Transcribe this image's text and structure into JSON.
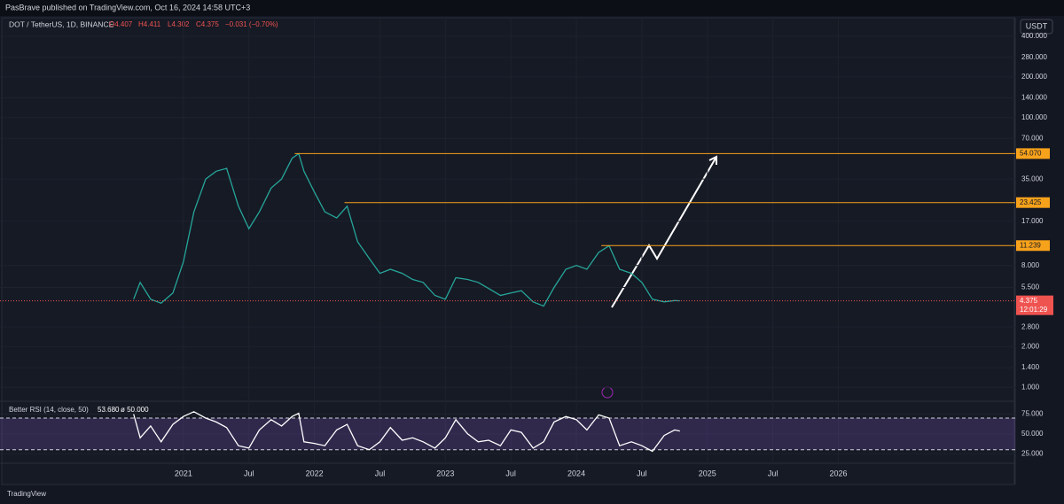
{
  "header": {
    "publisher": "PasBrave published on TradingView.com, Oct 16, 2024 14:58 UTC+3",
    "footer": "TradingView"
  },
  "chart_data": [
    {
      "type": "line",
      "title": "DOT / TetherUS, 1D, BINANCE",
      "ohlc": {
        "open": "O4.407",
        "high": "H4.411",
        "low": "L4.302",
        "close": "C4.375",
        "change": "−0.031 (−0.70%)"
      },
      "currency": "USDT",
      "log_scale": true,
      "color": "#26a69a",
      "x": [
        2020.62,
        2020.67,
        2020.75,
        2020.83,
        2020.92,
        2021.0,
        2021.08,
        2021.17,
        2021.25,
        2021.33,
        2021.42,
        2021.5,
        2021.58,
        2021.67,
        2021.75,
        2021.83,
        2021.88,
        2021.92,
        2022.0,
        2022.08,
        2022.17,
        2022.25,
        2022.33,
        2022.42,
        2022.5,
        2022.58,
        2022.67,
        2022.75,
        2022.83,
        2022.92,
        2023.0,
        2023.08,
        2023.17,
        2023.25,
        2023.33,
        2023.42,
        2023.5,
        2023.58,
        2023.67,
        2023.75,
        2023.83,
        2023.92,
        2024.0,
        2024.08,
        2024.17,
        2024.25,
        2024.33,
        2024.42,
        2024.5,
        2024.58,
        2024.67,
        2024.75,
        2024.79
      ],
      "series": [
        {
          "name": "DOT",
          "color": "#26a69a",
          "values": [
            4.5,
            6.0,
            4.5,
            4.2,
            5.0,
            8.5,
            20,
            35,
            40,
            42,
            22,
            15,
            20,
            30,
            35,
            50,
            54,
            40,
            28,
            20,
            18,
            22,
            12,
            9,
            7,
            7.5,
            7,
            6.3,
            6,
            4.8,
            4.5,
            6.5,
            6.3,
            6,
            5.4,
            4.8,
            5.0,
            5.2,
            4.3,
            4.0,
            5.5,
            7.5,
            8,
            7.5,
            10,
            11.2,
            7.5,
            7,
            6,
            4.5,
            4.3,
            4.4,
            4.375
          ]
        }
      ],
      "xlim": [
        2019.6,
        2027.35
      ],
      "xticks": [
        {
          "value": 2021,
          "label": "2021"
        },
        {
          "value": 2021.5,
          "label": "Jul"
        },
        {
          "value": 2022,
          "label": "2022"
        },
        {
          "value": 2022.5,
          "label": "Jul"
        },
        {
          "value": 2023,
          "label": "2023"
        },
        {
          "value": 2023.5,
          "label": "Jul"
        },
        {
          "value": 2024,
          "label": "2024"
        },
        {
          "value": 2024.5,
          "label": "Jul"
        },
        {
          "value": 2025,
          "label": "2025"
        },
        {
          "value": 2025.5,
          "label": "Jul"
        },
        {
          "value": 2026,
          "label": "2026"
        }
      ],
      "ylim": [
        0.8,
        550
      ],
      "yticks": [
        {
          "value": 1,
          "label": "1.000"
        },
        {
          "value": 1.4,
          "label": "1.400"
        },
        {
          "value": 2,
          "label": "2.000"
        },
        {
          "value": 2.8,
          "label": "2.800"
        },
        {
          "value": 5.5,
          "label": "5.500"
        },
        {
          "value": 8,
          "label": "8.000"
        },
        {
          "value": 17,
          "label": "17.000"
        },
        {
          "value": 35,
          "label": "35.000"
        },
        {
          "value": 70,
          "label": "70.000"
        },
        {
          "value": 100,
          "label": "100.000"
        },
        {
          "value": 140,
          "label": "140.000"
        },
        {
          "value": 200,
          "label": "200.000"
        },
        {
          "value": 280,
          "label": "280.000"
        },
        {
          "value": 400,
          "label": "400.000"
        }
      ],
      "levels": [
        {
          "value": 54.07,
          "label": "54.070",
          "from": 2021.85
        },
        {
          "value": 23.425,
          "label": "23.425",
          "from": 2022.23
        },
        {
          "value": 11.239,
          "label": "11.239",
          "from": 2024.19
        }
      ],
      "last_price": {
        "value": 4.375,
        "label": "4.375",
        "countdown": "12:01:29"
      }
    },
    {
      "type": "line",
      "title": "Better RSI (14, close, 50)",
      "current": "53.680",
      "average": "ø 50.000",
      "color": "#ffffff",
      "x": [
        2020.62,
        2020.67,
        2020.75,
        2020.83,
        2020.92,
        2021.0,
        2021.08,
        2021.17,
        2021.25,
        2021.33,
        2021.42,
        2021.5,
        2021.58,
        2021.67,
        2021.75,
        2021.83,
        2021.88,
        2021.92,
        2022.0,
        2022.08,
        2022.17,
        2022.25,
        2022.33,
        2022.42,
        2022.5,
        2022.58,
        2022.67,
        2022.75,
        2022.83,
        2022.92,
        2023.0,
        2023.08,
        2023.17,
        2023.25,
        2023.33,
        2023.42,
        2023.5,
        2023.58,
        2023.67,
        2023.75,
        2023.83,
        2023.92,
        2024.0,
        2024.08,
        2024.17,
        2024.25,
        2024.33,
        2024.42,
        2024.5,
        2024.58,
        2024.67,
        2024.75,
        2024.79
      ],
      "series": [
        {
          "name": "RSI",
          "color": "#ffffff",
          "values": [
            75,
            45,
            60,
            40,
            62,
            72,
            78,
            70,
            65,
            58,
            35,
            32,
            55,
            68,
            60,
            72,
            76,
            40,
            38,
            35,
            55,
            62,
            35,
            30,
            40,
            58,
            42,
            45,
            40,
            32,
            45,
            68,
            50,
            40,
            42,
            35,
            55,
            52,
            32,
            40,
            65,
            72,
            68,
            55,
            74,
            70,
            35,
            40,
            35,
            28,
            48,
            55,
            53.68
          ]
        }
      ],
      "ylim": [
        14,
        89
      ],
      "yticks": [
        {
          "value": 25,
          "label": "25.000"
        },
        {
          "value": 50,
          "label": "50.000"
        },
        {
          "value": 75,
          "label": "75.000"
        }
      ],
      "band": [
        30,
        70
      ]
    }
  ]
}
